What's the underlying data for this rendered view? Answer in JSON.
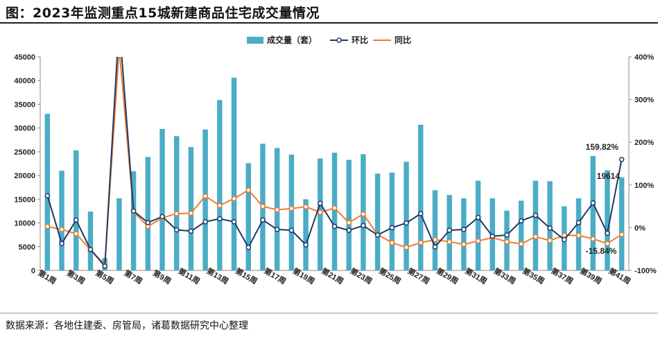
{
  "title": "图：2023年监测重点15城新建商品住宅成交量情况",
  "source": "数据来源：各地住建委、房管局，诸葛数据研究中心整理",
  "chart_data": {
    "type": "bar",
    "categories": [
      "第1周",
      "第2周",
      "第3周",
      "第4周",
      "第5周",
      "第6周",
      "第7周",
      "第8周",
      "第9周",
      "第10周",
      "第11周",
      "第12周",
      "第13周",
      "第14周",
      "第15周",
      "第16周",
      "第17周",
      "第18周",
      "第19周",
      "第20周",
      "第21周",
      "第22周",
      "第23周",
      "第24周",
      "第25周",
      "第26周",
      "第27周",
      "第28周",
      "第29周",
      "第30周",
      "第31周",
      "第32周",
      "第33周",
      "第34周",
      "第35周",
      "第36周",
      "第37周",
      "第38周",
      "第39周",
      "第40周",
      "第41周"
    ],
    "x_tick_labels": [
      "第1周",
      "第3周",
      "第5周",
      "第7周",
      "第9周",
      "第11周",
      "第13周",
      "第15周",
      "第17周",
      "第19周",
      "第21周",
      "第23周",
      "第25周",
      "第27周",
      "第29周",
      "第31周",
      "第33周",
      "第35周",
      "第37周",
      "第39周",
      "第41周"
    ],
    "series": [
      {
        "name": "成交量（套）",
        "type": "bar",
        "axis": "left",
        "color": "#4bacc6",
        "values": [
          33000,
          21000,
          25300,
          12400,
          2600,
          15200,
          20900,
          23900,
          29800,
          28300,
          26000,
          29700,
          35900,
          40600,
          22600,
          26700,
          25800,
          24400,
          15000,
          23600,
          24800,
          23300,
          24500,
          20400,
          20600,
          22900,
          30700,
          16900,
          15900,
          15200,
          18900,
          15200,
          12600,
          14700,
          18900,
          18800,
          13500,
          15200,
          24100,
          21100,
          19614
        ]
      },
      {
        "name": "环比",
        "type": "line",
        "axis": "right",
        "color": "#1f3864",
        "values": [
          75,
          -37,
          18,
          -51,
          -90,
          480,
          39,
          12,
          26,
          -5,
          -8,
          14,
          21,
          14,
          -46,
          18,
          -4,
          -6,
          -40,
          57,
          3,
          -6,
          5,
          -17,
          0,
          11,
          33,
          -45,
          -6,
          -4,
          24,
          -20,
          -17,
          16,
          29,
          -1,
          -28,
          12,
          58,
          -13,
          159.82
        ]
      },
      {
        "name": "同比",
        "type": "line",
        "axis": "right",
        "color": "#ed7d31",
        "values": [
          3,
          -4,
          -14,
          -52,
          -86,
          420,
          37,
          3,
          23,
          33,
          34,
          74,
          52,
          68,
          88,
          50,
          42,
          45,
          49,
          36,
          46,
          12,
          32,
          -16,
          -35,
          -46,
          -35,
          -28,
          -33,
          -39,
          -31,
          -23,
          -33,
          -38,
          -21,
          -30,
          -18,
          -18,
          -26,
          -37,
          -15.84
        ]
      }
    ],
    "y_left": {
      "min": 0,
      "max": 45000,
      "ticks": [
        "0",
        "5000",
        "10000",
        "15000",
        "20000",
        "25000",
        "30000",
        "35000",
        "40000",
        "45000"
      ]
    },
    "y_right": {
      "min": -100,
      "max": 400,
      "ticks": [
        "-100%",
        "0%",
        "100%",
        "200%",
        "300%",
        "400%"
      ]
    },
    "annotations": {
      "mom_last": "159.82%",
      "yoy_last": "-15.84%",
      "volume_last": "19614"
    },
    "legend": {
      "placement": "top-center",
      "items": [
        "成交量（套）",
        "环比",
        "同比"
      ]
    },
    "grid": false
  }
}
